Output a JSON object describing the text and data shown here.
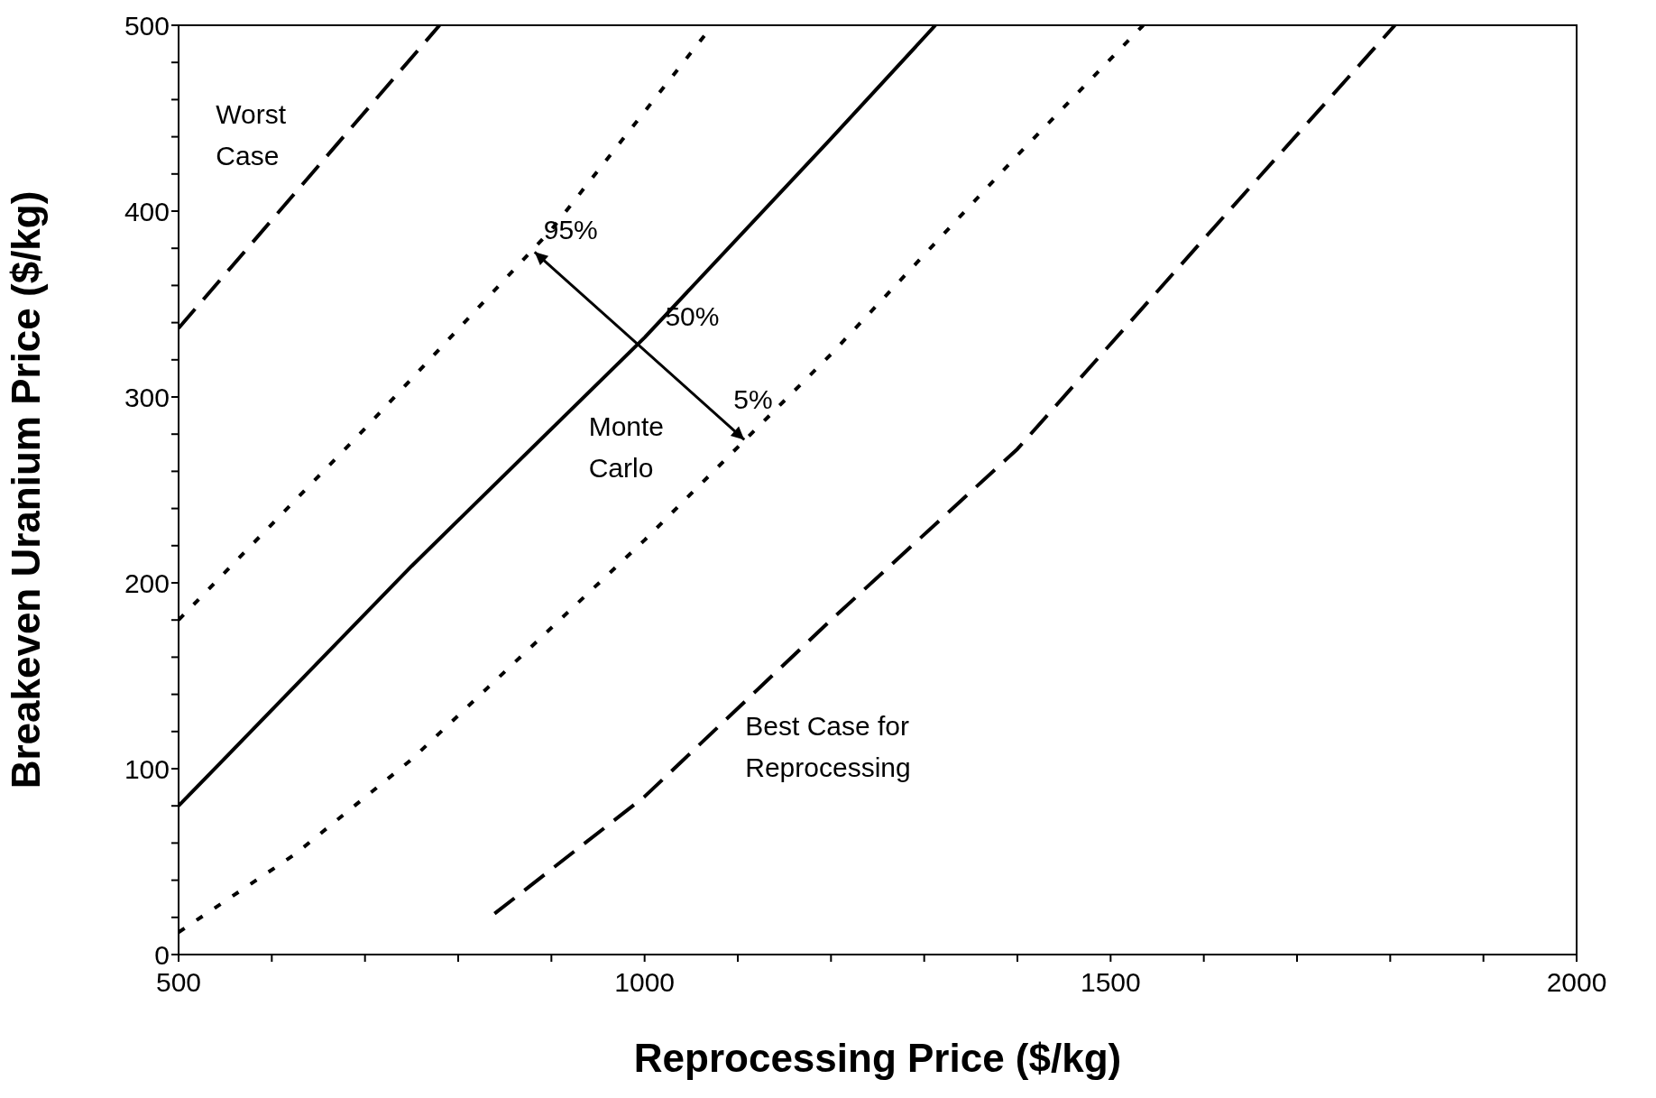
{
  "chart_data": {
    "type": "line",
    "xlabel": "Reprocessing Price ($/kg)",
    "ylabel": "Breakeven Uranium Price ($/kg)",
    "xlim": [
      500,
      2000
    ],
    "ylim": [
      0,
      500
    ],
    "xticks": [
      500,
      {
        "value": 600,
        "label": null
      },
      {
        "value": 700,
        "label": null
      },
      {
        "value": 800,
        "label": null
      },
      {
        "value": 900,
        "label": null
      },
      1000,
      {
        "value": 1100,
        "label": null
      },
      {
        "value": 1200,
        "label": null
      },
      {
        "value": 1300,
        "label": null
      },
      {
        "value": 1400,
        "label": null
      },
      1500,
      {
        "value": 1600,
        "label": null
      },
      {
        "value": 1700,
        "label": null
      },
      {
        "value": 1800,
        "label": null
      },
      {
        "value": 1900,
        "label": null
      },
      2000
    ],
    "yticks": [
      0,
      {
        "value": 20,
        "label": null
      },
      {
        "value": 40,
        "label": null
      },
      {
        "value": 60,
        "label": null
      },
      {
        "value": 80,
        "label": null
      },
      100,
      {
        "value": 120,
        "label": null
      },
      {
        "value": 140,
        "label": null
      },
      {
        "value": 160,
        "label": null
      },
      {
        "value": 180,
        "label": null
      },
      200,
      {
        "value": 220,
        "label": null
      },
      {
        "value": 240,
        "label": null
      },
      {
        "value": 260,
        "label": null
      },
      {
        "value": 280,
        "label": null
      },
      300,
      {
        "value": 320,
        "label": null
      },
      {
        "value": 340,
        "label": null
      },
      {
        "value": 360,
        "label": null
      },
      {
        "value": 380,
        "label": null
      },
      400,
      {
        "value": 420,
        "label": null
      },
      {
        "value": 440,
        "label": null
      },
      {
        "value": 460,
        "label": null
      },
      {
        "value": 480,
        "label": null
      },
      500
    ],
    "marker": "none",
    "series": [
      {
        "color": "#000000",
        "line_style": "dashed",
        "x": [
          500,
          780
        ],
        "values": [
          337,
          500
        ]
      },
      {
        "color": "#000000",
        "line_style": "dotted",
        "x": [
          500,
          700,
          900,
          1073
        ],
        "values": [
          180,
          283,
          390,
          500
        ]
      },
      {
        "color": "#000000",
        "line_style": "solid",
        "x": [
          500,
          750,
          1000,
          1200,
          1312
        ],
        "values": [
          80,
          209,
          332,
          439,
          500
        ]
      },
      {
        "color": "#000000",
        "line_style": "dotted",
        "x": [
          500,
          625,
          750,
          1000,
          1200,
          1400,
          1535
        ],
        "values": [
          12,
          54,
          105,
          223,
          323,
          430,
          500
        ]
      },
      {
        "color": "#000000",
        "line_style": "dashed",
        "x": [
          839,
          1000,
          1200,
          1400,
          1600,
          1805
        ],
        "values": [
          22,
          85,
          180,
          272,
          385,
          500
        ]
      }
    ],
    "annotations": [
      "Worst\nCase",
      {
        "text": "95%",
        "x": 882,
        "y": 378
      },
      "50%",
      {
        "text": "5%",
        "x": 1107,
        "y": 277
      },
      "Monte\nCarlo",
      "Best Case for\nReprocessing"
    ]
  }
}
